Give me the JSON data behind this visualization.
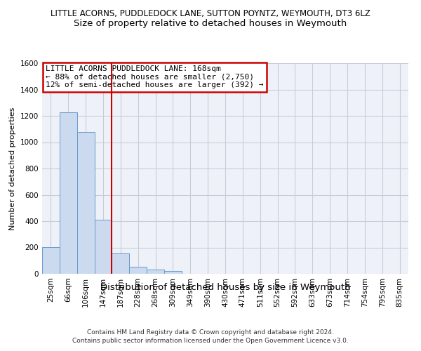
{
  "title": "LITTLE ACORNS, PUDDLEDOCK LANE, SUTTON POYNTZ, WEYMOUTH, DT3 6LZ",
  "subtitle": "Size of property relative to detached houses in Weymouth",
  "xlabel": "Distribution of detached houses by size in Weymouth",
  "ylabel": "Number of detached properties",
  "categories": [
    "25sqm",
    "66sqm",
    "106sqm",
    "147sqm",
    "187sqm",
    "228sqm",
    "268sqm",
    "309sqm",
    "349sqm",
    "390sqm",
    "430sqm",
    "471sqm",
    "511sqm",
    "552sqm",
    "592sqm",
    "633sqm",
    "673sqm",
    "714sqm",
    "754sqm",
    "795sqm",
    "835sqm"
  ],
  "values": [
    205,
    1225,
    1075,
    410,
    155,
    55,
    30,
    20,
    0,
    0,
    0,
    0,
    0,
    0,
    0,
    0,
    0,
    0,
    0,
    0,
    0
  ],
  "bar_color": "#ccdaf0",
  "bar_edge_color": "#6699cc",
  "grid_color": "#c8ccd8",
  "bg_color": "#eef2f8",
  "red_line_x": 3.5,
  "annotation_line1": "LITTLE ACORNS PUDDLEDOCK LANE: 168sqm",
  "annotation_line2": "← 88% of detached houses are smaller (2,750)",
  "annotation_line3": "12% of semi-detached houses are larger (392) →",
  "annotation_box_color": "#ffffff",
  "annotation_box_edge": "#cc0000",
  "red_line_color": "#cc0000",
  "ylim": [
    0,
    1600
  ],
  "yticks": [
    0,
    200,
    400,
    600,
    800,
    1000,
    1200,
    1400,
    1600
  ],
  "footnote1": "Contains HM Land Registry data © Crown copyright and database right 2024.",
  "footnote2": "Contains public sector information licensed under the Open Government Licence v3.0.",
  "title_fontsize": 8.5,
  "subtitle_fontsize": 9.5,
  "ylabel_fontsize": 8,
  "xlabel_fontsize": 9.5,
  "tick_fontsize": 7.5,
  "annot_fontsize": 8
}
